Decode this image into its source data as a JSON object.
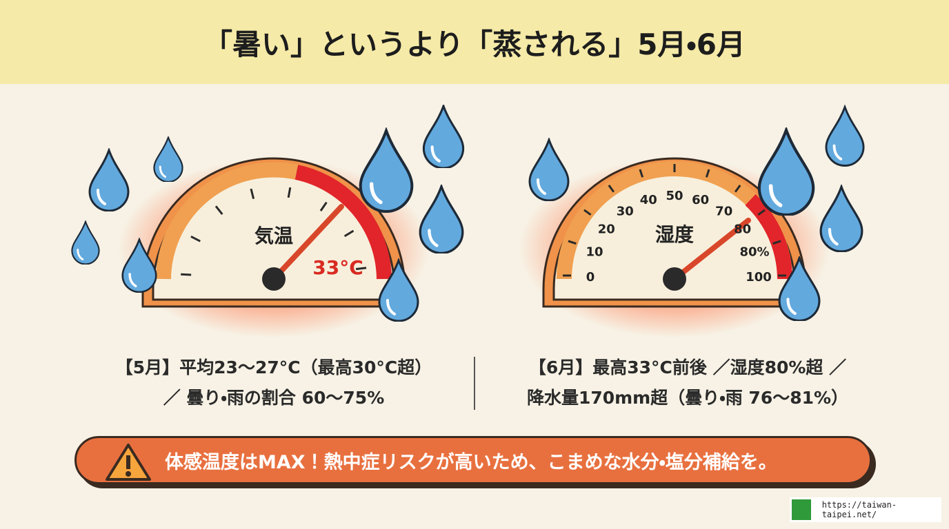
{
  "header": {
    "title": "「暑い」というより「蒸される」5月・6月"
  },
  "gauges": [
    {
      "label": "気温",
      "reading": "33°C"
    },
    {
      "label": "湿度",
      "scale": [
        "0",
        "10",
        "20",
        "30",
        "40",
        "50",
        "60",
        "70",
        "80",
        "80%",
        "100"
      ]
    }
  ],
  "columns": [
    {
      "lines": [
        "【5月】平均23〜27°C（最高30°C超）",
        "／ 曇り・雨の割合 60〜75%"
      ]
    },
    {
      "lines": [
        "【6月】最高33°C前後 ／湿度80%超 ／",
        "降水量170mm超（曇り・雨 76〜81%）"
      ]
    }
  ],
  "warning": {
    "text": "体感温度はMAX！熱中症リスクが高いため、こまめな水分・塩分補給を。"
  },
  "footer": {
    "url": "https://taiwan-taipei.net/"
  }
}
